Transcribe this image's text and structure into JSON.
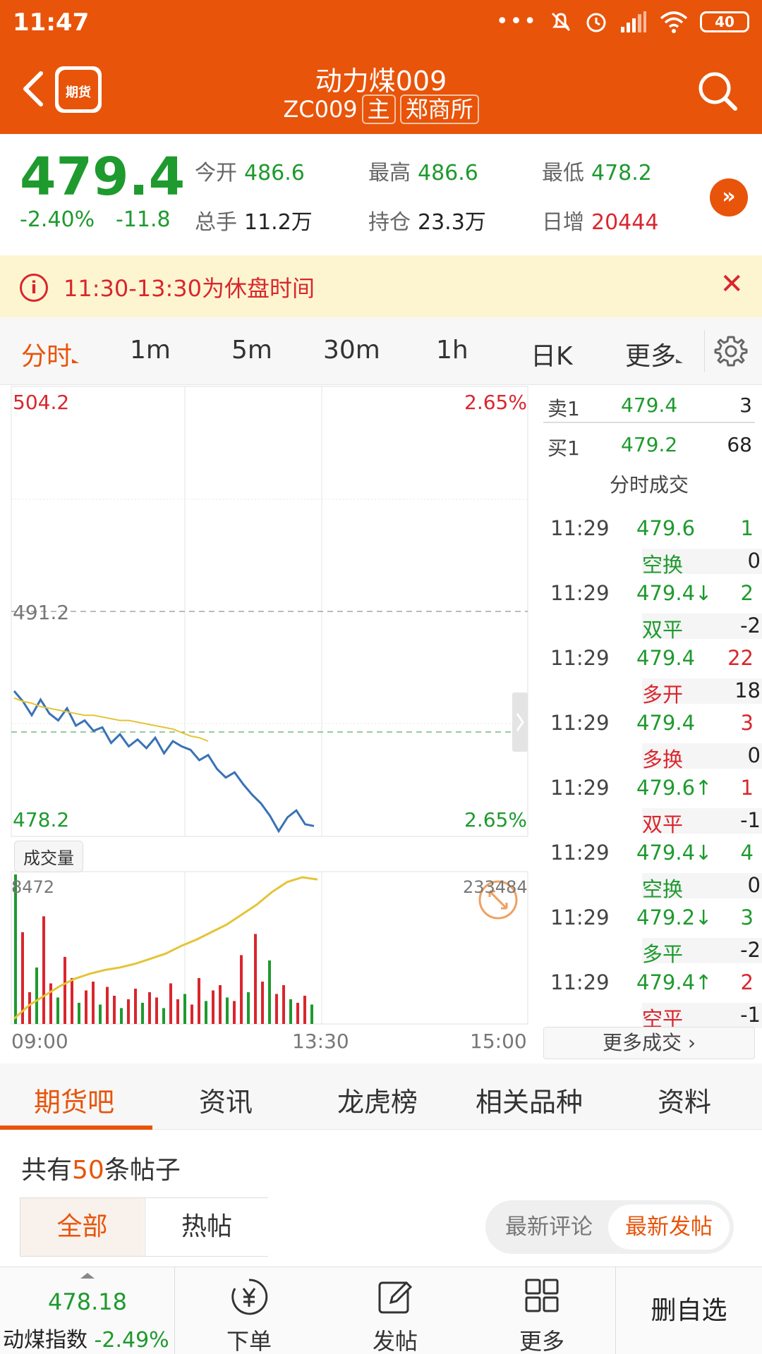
{
  "status_bar": {
    "time": "11:47",
    "battery": "40"
  },
  "header": {
    "logo_text": "期货",
    "title": "动力煤009",
    "code": "ZC009",
    "tag_main": "主",
    "tag_exchange": "郑商所"
  },
  "quote": {
    "price": "479.4",
    "change_pct": "-2.40%",
    "change": "-11.8",
    "open_label": "今开",
    "open": "486.6",
    "high_label": "最高",
    "high": "486.6",
    "low_label": "最低",
    "low": "478.2",
    "volume_label": "总手",
    "volume": "11.2万",
    "oi_label": "持仓",
    "oi": "23.3万",
    "daily_add_label": "日增",
    "daily_add": "20444",
    "more_symbol": "»"
  },
  "notice": {
    "text": "11:30-13:30为休盘时间",
    "icon": "i",
    "close": "✕"
  },
  "kline_tabs": {
    "items": [
      "分时",
      "1m",
      "5m",
      "30m",
      "1h",
      "日K",
      "更多"
    ],
    "active": "分时"
  },
  "chart": {
    "y_top": "504.2",
    "y_mid": "491.2",
    "y_bottom": "478.2",
    "pct_top": "2.65%",
    "pct_bottom": "2.65%",
    "volume_label": "成交量",
    "vol_left": "8472",
    "vol_right": "233484",
    "x_labels": [
      "09:00",
      "13:30",
      "15:00"
    ]
  },
  "chart_data": {
    "type": "line",
    "title": "",
    "xlabel": "",
    "ylabel": "",
    "ylim": [
      478.2,
      504.2
    ],
    "reference": 491.2,
    "x_range": [
      "09:00",
      "15:00"
    ],
    "series": [
      {
        "values": [
          486.6,
          486.0,
          485.2,
          486.1,
          485.3,
          484.9,
          485.6,
          484.6,
          484.9,
          484.3,
          484.5,
          483.6,
          484.1,
          483.4,
          483.8,
          483.3,
          483.9,
          483.0,
          483.7,
          483.4,
          483.2,
          482.6,
          482.9,
          482.1,
          481.6,
          481.9,
          481.2,
          480.6,
          480.1,
          479.4,
          478.5,
          479.3,
          479.7,
          478.9,
          478.8
        ]
      },
      {
        "values": [
          486.2,
          486.0,
          485.9,
          485.7,
          485.6,
          485.5,
          485.4,
          485.3,
          485.2,
          485.2,
          485.1,
          485.0,
          484.9,
          484.9,
          484.8,
          484.7,
          484.6,
          484.5,
          484.4,
          484.2,
          484.0,
          483.9,
          483.7
        ]
      }
    ],
    "volume": {
      "bars": [
        8472,
        5200,
        1800,
        3200,
        6100,
        2300,
        1500,
        3800,
        2600,
        1200,
        1900,
        2400,
        1100,
        2100,
        1600,
        900,
        1400,
        2000,
        1200,
        1800,
        1500,
        900,
        2300,
        1400,
        1700,
        1100,
        2600,
        1300,
        1900,
        2200,
        1500,
        1300,
        3900,
        1800,
        5100,
        2400,
        3600,
        1700,
        2200,
        1400,
        1200,
        1600,
        1100
      ],
      "cumulative": [
        8472,
        30000,
        45000,
        60000,
        72000,
        80000,
        86000,
        90000,
        96000,
        104000,
        112000,
        124000,
        134000,
        146000,
        158000,
        174000,
        190000,
        210000,
        226000,
        233484,
        230000
      ]
    }
  },
  "order_book": {
    "sell_label": "卖1",
    "sell_price": "479.4",
    "sell_qty": "3",
    "buy_label": "买1",
    "buy_price": "479.2",
    "buy_qty": "68",
    "ticks_title": "分时成交",
    "ticks": [
      {
        "time": "11:29",
        "price": "479.6",
        "arrow": "",
        "vol": "1",
        "kind": "空换",
        "kval": "0",
        "pcolor": "#1e9a2e",
        "vcolor": "#1e9a2e",
        "kcolor": "#1e9a2e"
      },
      {
        "time": "11:29",
        "price": "479.4↓",
        "arrow": "",
        "vol": "2",
        "kind": "双平",
        "kval": "-2",
        "pcolor": "#1e9a2e",
        "vcolor": "#1e9a2e",
        "kcolor": "#1e9a2e"
      },
      {
        "time": "11:29",
        "price": "479.4",
        "arrow": "",
        "vol": "22",
        "kind": "多开",
        "kval": "18",
        "pcolor": "#1e9a2e",
        "vcolor": "#d9262e",
        "kcolor": "#d9262e"
      },
      {
        "time": "11:29",
        "price": "479.4",
        "arrow": "",
        "vol": "3",
        "kind": "多换",
        "kval": "0",
        "pcolor": "#1e9a2e",
        "vcolor": "#d9262e",
        "kcolor": "#d9262e"
      },
      {
        "time": "11:29",
        "price": "479.6↑",
        "arrow": "",
        "vol": "1",
        "kind": "双平",
        "kval": "-1",
        "pcolor": "#1e9a2e",
        "vcolor": "#d9262e",
        "kcolor": "#d9262e"
      },
      {
        "time": "11:29",
        "price": "479.4↓",
        "arrow": "",
        "vol": "4",
        "kind": "空换",
        "kval": "0",
        "pcolor": "#1e9a2e",
        "vcolor": "#1e9a2e",
        "kcolor": "#1e9a2e"
      },
      {
        "time": "11:29",
        "price": "479.2↓",
        "arrow": "",
        "vol": "3",
        "kind": "多平",
        "kval": "-2",
        "pcolor": "#1e9a2e",
        "vcolor": "#1e9a2e",
        "kcolor": "#1e9a2e"
      },
      {
        "time": "11:29",
        "price": "479.4↑",
        "arrow": "",
        "vol": "2",
        "kind": "空平",
        "kval": "-1",
        "pcolor": "#1e9a2e",
        "vcolor": "#d9262e",
        "kcolor": "#d9262e"
      }
    ],
    "more_trades": "更多成交 ›"
  },
  "content_tabs": {
    "items": [
      "期货吧",
      "资讯",
      "龙虎榜",
      "相关品种",
      "资料"
    ],
    "active": "期货吧"
  },
  "posts": {
    "prefix": "共有",
    "count": "50",
    "suffix": "条帖子",
    "filter_all": "全部",
    "filter_hot": "热帖",
    "sort_comment": "最新评论",
    "sort_post": "最新发帖"
  },
  "bottom_nav": {
    "index_value": "478.18",
    "index_name": "动煤指数",
    "index_pct": "-2.49%",
    "order": "下单",
    "post": "发帖",
    "more": "更多",
    "remove_watch": "删自选"
  },
  "colors": {
    "brand": "#e8540a",
    "up": "#d9262e",
    "down": "#1e9a2e",
    "price_line": "#3a72b5",
    "avg_line": "#e5c436"
  }
}
